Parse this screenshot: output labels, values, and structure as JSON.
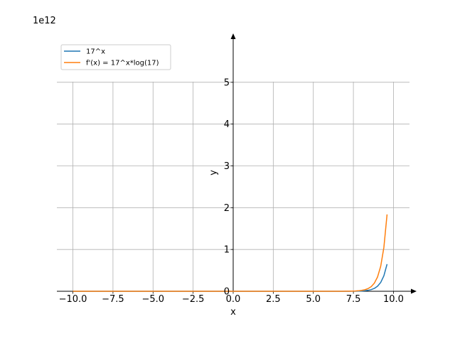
{
  "chart_data": {
    "type": "line",
    "title": "",
    "xlabel": "x",
    "ylabel": "y",
    "offset_label": "1e12",
    "xlim": [
      -11.0,
      11.0
    ],
    "ylim": [
      0,
      6.0
    ],
    "x_ticks": [
      -10.0,
      -7.5,
      -5.0,
      -2.5,
      0.0,
      2.5,
      5.0,
      7.5,
      10.0
    ],
    "x_tick_labels": [
      "−10.0",
      "−7.5",
      "−5.0",
      "−2.5",
      "0.0",
      "2.5",
      "5.0",
      "7.5",
      "10.0"
    ],
    "y_ticks": [
      0,
      1,
      2,
      3,
      4,
      5
    ],
    "y_tick_labels": [
      "0",
      "1",
      "2",
      "3",
      "4",
      "5"
    ],
    "grid": true,
    "legend_position": "top-left",
    "x_domain": [
      -10.0,
      9.6
    ],
    "y_scale": 1000000000000.0,
    "series": [
      {
        "name": "17^x",
        "color": "#1f77b4",
        "base": 17,
        "multiplier": 1
      },
      {
        "name": "f'(x) = 17^x*log(17)",
        "color": "#ff7f0e",
        "base": 17,
        "multiplier": 2.833213344
      }
    ]
  }
}
